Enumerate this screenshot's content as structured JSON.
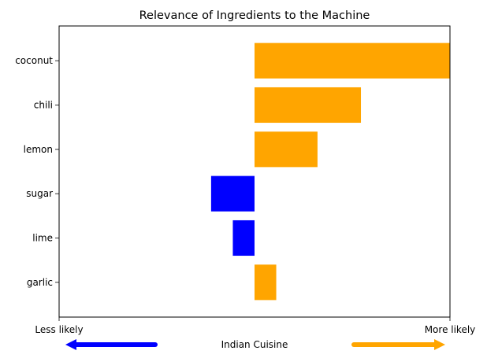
{
  "chart_data": {
    "type": "bar",
    "orientation": "horizontal",
    "title": "Relevance of Ingredients to the Machine",
    "categories": [
      "coconut",
      "chili",
      "lemon",
      "sugar",
      "lime",
      "garlic"
    ],
    "values": [
      0.45,
      0.245,
      0.145,
      -0.1,
      -0.05,
      0.05
    ],
    "bar_colors": [
      "#ffa500",
      "#ffa500",
      "#ffa500",
      "#0000ff",
      "#0000ff",
      "#ffa500"
    ],
    "xlim": [
      -0.45,
      0.45
    ],
    "xlabel": "Indian Cuisine",
    "left_label": "Less likely",
    "right_label": "More likely",
    "left_arrow_color": "#0000ff",
    "right_arrow_color": "#ffa500",
    "grid": false,
    "legend": "none"
  }
}
